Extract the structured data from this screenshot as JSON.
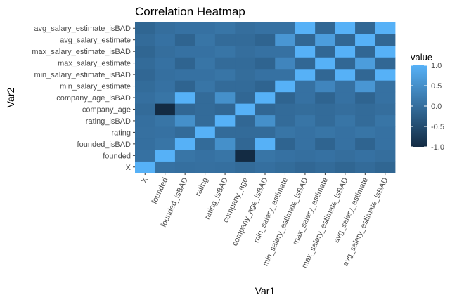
{
  "chart_data": {
    "type": "heatmap",
    "title": "Correlation Heatmap",
    "xlabel": "Var1",
    "ylabel": "Var2",
    "variables": [
      "X",
      "founded",
      "founded_isBAD",
      "rating",
      "rating_isBAD",
      "company_age",
      "company_age_isBAD",
      "min_salary_estimate",
      "min_salary_estimate_isBAD",
      "max_salary_estimate",
      "max_salary_estimate_isBAD",
      "avg_salary_estimate",
      "avg_salary_estimate_isBAD"
    ],
    "values": [
      [
        1.0,
        0.05,
        0.02,
        0.03,
        0.02,
        -0.05,
        0.02,
        -0.03,
        -0.1,
        -0.05,
        -0.12,
        -0.05,
        -0.12
      ],
      [
        0.05,
        1.0,
        0.1,
        0.05,
        0.1,
        -1.0,
        0.1,
        0.05,
        0.02,
        0.05,
        0.0,
        0.05,
        0.0
      ],
      [
        0.02,
        0.1,
        1.0,
        -0.05,
        0.5,
        -0.1,
        1.0,
        -0.15,
        0.05,
        -0.15,
        0.05,
        -0.15,
        0.05
      ],
      [
        0.03,
        0.05,
        -0.05,
        1.0,
        -0.05,
        -0.05,
        -0.05,
        0.1,
        0.05,
        0.1,
        0.05,
        0.1,
        0.05
      ],
      [
        0.02,
        0.1,
        0.5,
        -0.05,
        1.0,
        -0.1,
        0.5,
        -0.05,
        0.1,
        -0.05,
        0.1,
        -0.05,
        0.1
      ],
      [
        -0.05,
        -1.0,
        -0.1,
        -0.05,
        -0.1,
        1.0,
        -0.1,
        -0.05,
        -0.02,
        -0.05,
        0.0,
        -0.05,
        0.0
      ],
      [
        0.02,
        0.1,
        1.0,
        -0.05,
        0.5,
        -0.1,
        1.0,
        -0.15,
        0.05,
        -0.15,
        0.05,
        -0.15,
        0.05
      ],
      [
        -0.03,
        0.05,
        -0.15,
        0.1,
        -0.05,
        -0.05,
        -0.15,
        1.0,
        0.05,
        0.35,
        0.05,
        0.6,
        0.05
      ],
      [
        -0.1,
        0.02,
        0.05,
        0.05,
        0.1,
        -0.02,
        0.05,
        0.05,
        1.0,
        -0.1,
        1.0,
        -0.1,
        1.0
      ],
      [
        -0.05,
        0.05,
        -0.15,
        0.1,
        -0.05,
        -0.05,
        -0.15,
        0.35,
        -0.1,
        1.0,
        -0.1,
        0.7,
        -0.1
      ],
      [
        -0.12,
        0.0,
        0.05,
        0.05,
        0.1,
        0.0,
        0.05,
        0.05,
        1.0,
        -0.1,
        1.0,
        -0.1,
        1.0
      ],
      [
        -0.05,
        0.05,
        -0.15,
        0.1,
        -0.05,
        -0.05,
        -0.15,
        0.6,
        -0.1,
        0.7,
        -0.1,
        1.0,
        -0.1
      ],
      [
        -0.12,
        0.0,
        0.05,
        0.05,
        0.1,
        0.0,
        0.05,
        0.05,
        1.0,
        -0.1,
        1.0,
        -0.1,
        1.0
      ]
    ],
    "legend": {
      "title": "value",
      "ticks": [
        "1.0",
        "0.5",
        "0.0",
        "-0.5",
        "-1.0"
      ],
      "low_color": "#132B43",
      "high_color": "#56B1F7",
      "range": [
        -1,
        1
      ],
      "placement": "right"
    },
    "panel_background": "#EBEBEB",
    "grid": false
  }
}
